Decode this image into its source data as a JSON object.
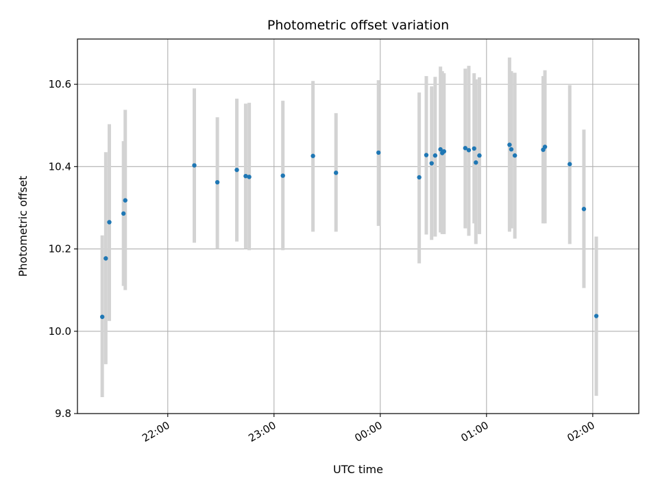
{
  "chart_data": {
    "type": "scatter",
    "title": "Photometric offset variation",
    "xlabel": "UTC time",
    "ylabel": "Photometric offset",
    "x_axis": {
      "unit": "time",
      "ticks": [
        "22:00",
        "23:00",
        "00:00",
        "01:00",
        "02:00"
      ],
      "tick_rotation_deg": 30
    },
    "y_axis": {
      "ticks": [
        "9.8",
        "10.0",
        "10.2",
        "10.4",
        "10.6"
      ]
    },
    "ylim": [
      9.8,
      10.71
    ],
    "xlim": [
      "21:09",
      "02:26"
    ],
    "grid": true,
    "colors": {
      "point": "#1f77b4",
      "errorbar": "#d3d3d3",
      "grid": "#b0b0b0"
    },
    "points": [
      {
        "t": "21:23",
        "y": 10.035,
        "lo": 9.84,
        "hi": 10.233
      },
      {
        "t": "21:25",
        "y": 10.177,
        "lo": 9.92,
        "hi": 10.435
      },
      {
        "t": "21:27",
        "y": 10.265,
        "lo": 10.025,
        "hi": 10.503
      },
      {
        "t": "21:35",
        "y": 10.286,
        "lo": 10.11,
        "hi": 10.462
      },
      {
        "t": "21:36",
        "y": 10.318,
        "lo": 10.1,
        "hi": 10.538
      },
      {
        "t": "22:15",
        "y": 10.403,
        "lo": 10.215,
        "hi": 10.59
      },
      {
        "t": "22:28",
        "y": 10.362,
        "lo": 10.2,
        "hi": 10.52
      },
      {
        "t": "22:39",
        "y": 10.392,
        "lo": 10.218,
        "hi": 10.565
      },
      {
        "t": "22:44",
        "y": 10.377,
        "lo": 10.2,
        "hi": 10.553
      },
      {
        "t": "22:46",
        "y": 10.375,
        "lo": 10.197,
        "hi": 10.555
      },
      {
        "t": "23:05",
        "y": 10.378,
        "lo": 10.197,
        "hi": 10.56
      },
      {
        "t": "23:22",
        "y": 10.426,
        "lo": 10.242,
        "hi": 10.608
      },
      {
        "t": "23:35",
        "y": 10.385,
        "lo": 10.242,
        "hi": 10.53
      },
      {
        "t": "23:59",
        "y": 10.434,
        "lo": 10.256,
        "hi": 10.61
      },
      {
        "t": "00:22",
        "y": 10.374,
        "lo": 10.165,
        "hi": 10.58
      },
      {
        "t": "00:26",
        "y": 10.428,
        "lo": 10.235,
        "hi": 10.62
      },
      {
        "t": "00:29",
        "y": 10.408,
        "lo": 10.222,
        "hi": 10.595
      },
      {
        "t": "00:31",
        "y": 10.427,
        "lo": 10.23,
        "hi": 10.618
      },
      {
        "t": "00:34",
        "y": 10.442,
        "lo": 10.24,
        "hi": 10.643
      },
      {
        "t": "00:35",
        "y": 10.433,
        "lo": 10.236,
        "hi": 10.632
      },
      {
        "t": "00:36",
        "y": 10.437,
        "lo": 10.236,
        "hi": 10.627
      },
      {
        "t": "00:48",
        "y": 10.445,
        "lo": 10.25,
        "hi": 10.638
      },
      {
        "t": "00:50",
        "y": 10.44,
        "lo": 10.232,
        "hi": 10.645
      },
      {
        "t": "00:53",
        "y": 10.444,
        "lo": 10.262,
        "hi": 10.627
      },
      {
        "t": "00:54",
        "y": 10.41,
        "lo": 10.212,
        "hi": 10.612
      },
      {
        "t": "00:56",
        "y": 10.427,
        "lo": 10.236,
        "hi": 10.617
      },
      {
        "t": "01:13",
        "y": 10.453,
        "lo": 10.242,
        "hi": 10.665
      },
      {
        "t": "01:14",
        "y": 10.442,
        "lo": 10.25,
        "hi": 10.632
      },
      {
        "t": "01:16",
        "y": 10.427,
        "lo": 10.225,
        "hi": 10.628
      },
      {
        "t": "01:32",
        "y": 10.441,
        "lo": 10.262,
        "hi": 10.62
      },
      {
        "t": "01:33",
        "y": 10.448,
        "lo": 10.262,
        "hi": 10.634
      },
      {
        "t": "01:47",
        "y": 10.406,
        "lo": 10.212,
        "hi": 10.598
      },
      {
        "t": "01:55",
        "y": 10.297,
        "lo": 10.105,
        "hi": 10.49
      },
      {
        "t": "02:02",
        "y": 10.037,
        "lo": 9.843,
        "hi": 10.23
      }
    ]
  }
}
